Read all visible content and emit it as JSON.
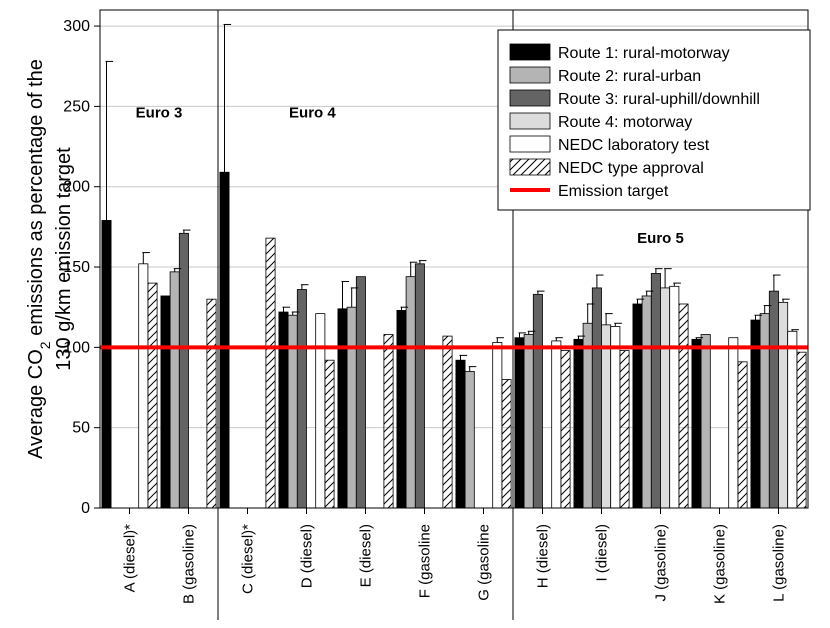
{
  "chart_data": {
    "type": "bar",
    "ylabel_line1_pre": "Average CO",
    "ylabel_line1_sub": "2",
    "ylabel_line1_post": " emissions as percentage of the",
    "ylabel_line2": "130 g/km emission target",
    "ylim": [
      0,
      310
    ],
    "yticks": [
      0,
      50,
      100,
      150,
      200,
      250,
      300
    ],
    "grid": true,
    "legend_position": "top-right",
    "categories": [
      "A (diesel)*",
      "B (gasoline)",
      "C (diesel)*",
      "D (diesel)",
      "E (diesel)",
      "F (gasoline",
      "G (gasoline",
      "H (diesel)",
      "I (diesel)",
      "J (gasoline)",
      "K (gasoline)",
      "L (gasoline)"
    ],
    "series": [
      {
        "name": "Route 1: rural-motorway",
        "fill": "#000000",
        "pattern": "none",
        "values": [
          179,
          132,
          209,
          122,
          124,
          123,
          92,
          106,
          105,
          127,
          105,
          117
        ],
        "errors": [
          99,
          0,
          92,
          3,
          17,
          2,
          3,
          3,
          2,
          3,
          1,
          3
        ]
      },
      {
        "name": "Route 2: rural-urban",
        "fill": "#b4b4b4",
        "pattern": "none",
        "values": [
          null,
          147,
          null,
          120,
          125,
          144,
          85,
          108,
          115,
          132,
          108,
          121
        ],
        "errors": [
          0,
          2,
          0,
          2,
          12,
          9,
          3,
          2,
          12,
          3,
          0,
          5
        ]
      },
      {
        "name": "Route 3: rural-uphill/downhill",
        "fill": "#646464",
        "pattern": "none",
        "values": [
          null,
          171,
          null,
          136,
          144,
          152,
          null,
          133,
          137,
          146,
          null,
          135
        ],
        "errors": [
          0,
          2,
          0,
          3,
          0,
          2,
          0,
          2,
          8,
          3,
          0,
          10
        ]
      },
      {
        "name": "Route 4: motorway",
        "fill": "#dcdcdc",
        "pattern": "none",
        "values": [
          null,
          null,
          null,
          null,
          null,
          null,
          null,
          null,
          114,
          137,
          null,
          128
        ],
        "errors": [
          0,
          0,
          0,
          0,
          0,
          0,
          0,
          0,
          7,
          12,
          0,
          2
        ]
      },
      {
        "name": "NEDC laboratory test",
        "fill": "#ffffff",
        "pattern": "none",
        "values": [
          152,
          null,
          null,
          121,
          null,
          null,
          103,
          104,
          113,
          138,
          106,
          110
        ],
        "errors": [
          7,
          0,
          0,
          0,
          0,
          0,
          3,
          2,
          2,
          2,
          0,
          1
        ]
      },
      {
        "name": "NEDC type approval",
        "fill": "#ffffff",
        "pattern": "hatch",
        "values": [
          140,
          130,
          168,
          92,
          108,
          107,
          80,
          98,
          98,
          127,
          91,
          97
        ],
        "errors": [
          0,
          0,
          0,
          0,
          0,
          0,
          0,
          0,
          0,
          0,
          0,
          0
        ]
      }
    ],
    "target": {
      "name": "Emission target",
      "value": 100,
      "color": "#ff0000"
    },
    "eras": [
      {
        "label": "Euro 3",
        "value_y": 243,
        "cat_pos": 0.5
      },
      {
        "label": "Euro 4",
        "value_y": 243,
        "cat_pos": 3.1
      },
      {
        "label": "Euro 5",
        "value_y": 165,
        "cat_pos": 9.0
      }
    ],
    "era_separators_after": [
      1,
      6
    ]
  }
}
